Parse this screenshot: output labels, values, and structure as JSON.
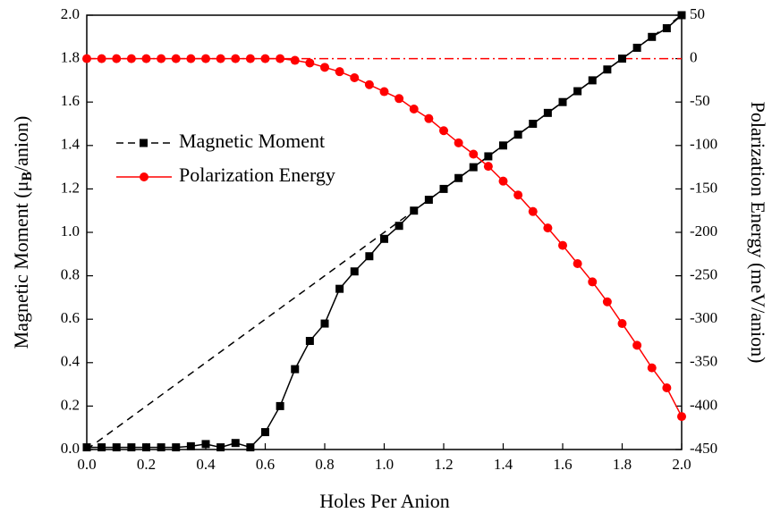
{
  "chart_data": {
    "type": "line",
    "x_label": "Holes Per Anion",
    "y_label": {
      "before": "Magnetic Moment (μ",
      "sub": "B",
      "after": "/anion)"
    },
    "y2_label": "Polarization Energy (meV/anion)",
    "x": [
      0,
      0.05,
      0.1,
      0.15,
      0.2,
      0.25,
      0.3,
      0.35,
      0.4,
      0.45,
      0.5,
      0.55,
      0.6,
      0.65,
      0.7,
      0.75,
      0.8,
      0.85,
      0.9,
      0.95,
      1.0,
      1.05,
      1.1,
      1.15,
      1.2,
      1.25,
      1.3,
      1.35,
      1.4,
      1.45,
      1.5,
      1.55,
      1.6,
      1.65,
      1.7,
      1.75,
      1.8,
      1.85,
      1.9,
      1.95,
      2.0
    ],
    "series": [
      {
        "name": "Magnetic Moment",
        "color": "#000000",
        "marker": "square",
        "values": [
          0.01,
          0.01,
          0.01,
          0.01,
          0.01,
          0.01,
          0.01,
          0.015,
          0.025,
          0.01,
          0.03,
          0.01,
          0.08,
          0.2,
          0.37,
          0.5,
          0.58,
          0.74,
          0.82,
          0.89,
          0.97,
          1.03,
          1.1,
          1.15,
          1.2,
          1.25,
          1.3,
          1.35,
          1.4,
          1.45,
          1.5,
          1.55,
          1.6,
          1.65,
          1.7,
          1.75,
          1.8,
          1.85,
          1.9,
          1.94,
          2.0
        ]
      },
      {
        "name": "Polarization Energy",
        "color": "#ff0000",
        "marker": "circle",
        "axis": "y2",
        "values": [
          0,
          0,
          0,
          0,
          0,
          0,
          0,
          0,
          0,
          0,
          0,
          0,
          0,
          0,
          -2,
          -5,
          -10,
          -15,
          -22,
          -30,
          -38,
          -46,
          -58,
          -69,
          -83,
          -97,
          -110,
          -124,
          -141,
          -157,
          -176,
          -195,
          -215,
          -236,
          -257,
          -280,
          -305,
          -330,
          -356,
          -379,
          -412
        ]
      }
    ],
    "reference_lines": [
      {
        "x": [
          0,
          2
        ],
        "values": [
          0,
          2
        ],
        "color": "#000000",
        "style": "dashed"
      },
      {
        "x": [
          0,
          2
        ],
        "values": [
          0,
          0
        ],
        "color": "#ff0000",
        "style": "dashdot",
        "axis": "y2"
      }
    ],
    "xlim": [
      0,
      2
    ],
    "xticks": [
      {
        "value": 0,
        "label": "0.0"
      },
      {
        "value": 0.2,
        "label": "0.2"
      },
      {
        "value": 0.4,
        "label": "0.4"
      },
      {
        "value": 0.6,
        "label": "0.6"
      },
      {
        "value": 0.8,
        "label": "0.8"
      },
      {
        "value": 1,
        "label": "1.0"
      },
      {
        "value": 1.2,
        "label": "1.2"
      },
      {
        "value": 1.4,
        "label": "1.4"
      },
      {
        "value": 1.6,
        "label": "1.6"
      },
      {
        "value": 1.8,
        "label": "1.8"
      },
      {
        "value": 2,
        "label": "2.0"
      }
    ],
    "ylim": [
      0,
      2
    ],
    "yticks": [
      {
        "value": 0,
        "label": "0.0"
      },
      {
        "value": 0.2,
        "label": "0.2"
      },
      {
        "value": 0.4,
        "label": "0.4"
      },
      {
        "value": 0.6,
        "label": "0.6"
      },
      {
        "value": 0.8,
        "label": "0.8"
      },
      {
        "value": 1,
        "label": "1.0"
      },
      {
        "value": 1.2,
        "label": "1.2"
      },
      {
        "value": 1.4,
        "label": "1.4"
      },
      {
        "value": 1.6,
        "label": "1.6"
      },
      {
        "value": 1.8,
        "label": "1.8"
      },
      {
        "value": 2,
        "label": "2.0"
      }
    ],
    "y2lim": [
      -450,
      50
    ],
    "y2ticks": [
      -450,
      -400,
      -350,
      -300,
      -250,
      -200,
      -150,
      -100,
      -50,
      0,
      50
    ],
    "legend": "upper-left"
  }
}
